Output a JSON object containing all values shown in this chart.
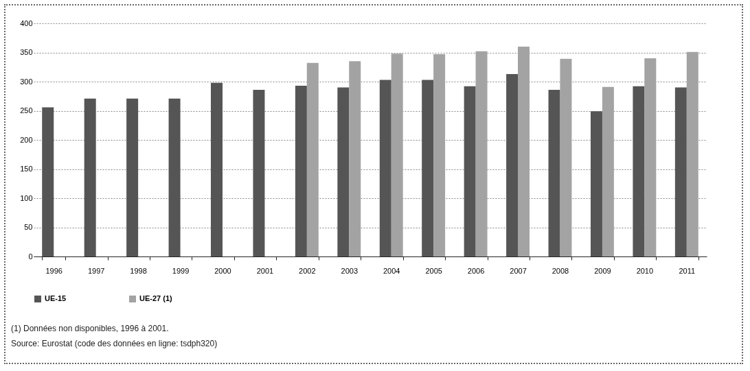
{
  "chart_data": {
    "type": "bar",
    "categories": [
      "1996",
      "1997",
      "1998",
      "1999",
      "2000",
      "2001",
      "2002",
      "2003",
      "2004",
      "2005",
      "2006",
      "2007",
      "2008",
      "2009",
      "2010",
      "2011"
    ],
    "series": [
      {
        "name": "UE-15",
        "color": "#555555",
        "values": [
          256,
          271,
          271,
          271,
          298,
          286,
          293,
          290,
          303,
          303,
          292,
          313,
          286,
          249,
          292,
          290
        ]
      },
      {
        "name": "UE-27 (1)",
        "color": "#a3a3a3",
        "values": [
          null,
          null,
          null,
          null,
          null,
          null,
          332,
          335,
          348,
          347,
          352,
          360,
          339,
          291,
          340,
          351
        ]
      }
    ],
    "ylim": [
      0,
      400
    ],
    "yticks": [
      0,
      50,
      100,
      150,
      200,
      250,
      300,
      350,
      400
    ],
    "grid": "y",
    "legend": "bottom",
    "annotations": [
      "(1) Données non disponibles, 1996 à 2001.",
      "Source: Eurostat (code des données en ligne: tsdph320)"
    ]
  }
}
